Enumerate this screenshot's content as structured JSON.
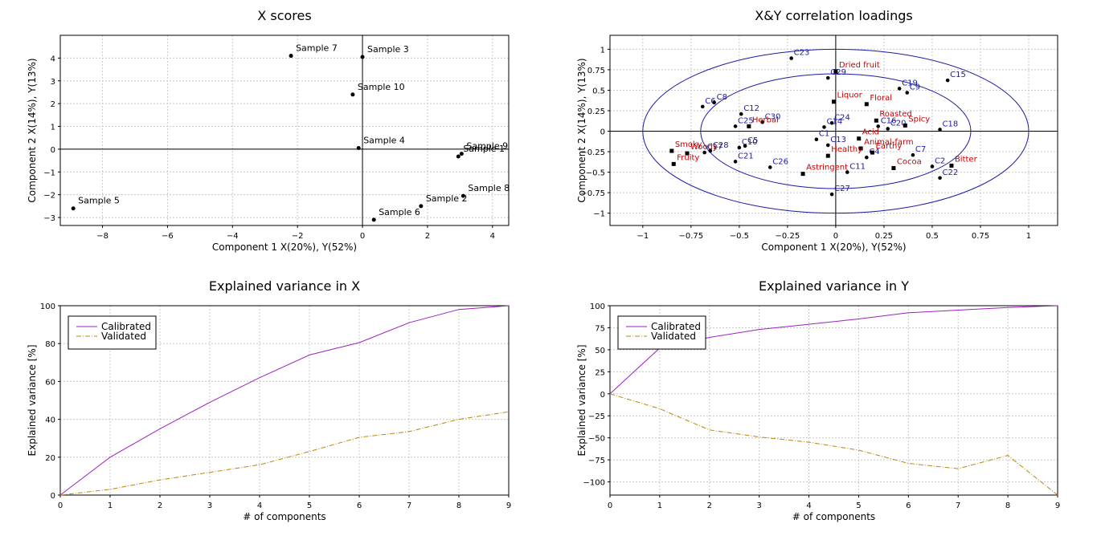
{
  "chart_data": [
    {
      "type": "scatter",
      "title": "X scores",
      "xlabel": "Component 1 X(20%), Y(52%)",
      "ylabel": "Component 2 X(14%), Y(13%)",
      "xlim": [
        -9.3,
        4.5
      ],
      "ylim": [
        -3.35,
        5.0
      ],
      "xticks": [
        -8,
        -6,
        -4,
        -2,
        0,
        2,
        4
      ],
      "yticks": [
        -3,
        -2,
        -1,
        0,
        1,
        2,
        3,
        4
      ],
      "grid": true,
      "points": [
        {
          "label": "Sample 7",
          "x": -2.2,
          "y": 4.1
        },
        {
          "label": "Sample 3",
          "x": 0.0,
          "y": 4.05
        },
        {
          "label": "Sample 10",
          "x": -0.3,
          "y": 2.4
        },
        {
          "label": "Sample 4",
          "x": -0.12,
          "y": 0.05
        },
        {
          "label": "Sample 9",
          "x": 3.05,
          "y": -0.2
        },
        {
          "label": "Sample 1",
          "x": 2.95,
          "y": -0.32
        },
        {
          "label": "Sample 8",
          "x": 3.1,
          "y": -2.05
        },
        {
          "label": "Sample 2",
          "x": 1.8,
          "y": -2.5
        },
        {
          "label": "Sample 6",
          "x": 0.35,
          "y": -3.1
        },
        {
          "label": "Sample 5",
          "x": -8.9,
          "y": -2.6
        }
      ]
    },
    {
      "type": "scatter",
      "title": "X&Y correlation loadings",
      "xlabel": "Component 1 X(20%), Y(52%)",
      "ylabel": "Component 2 X(14%), Y(13%)",
      "xlim": [
        -1.17,
        1.15
      ],
      "ylim": [
        -1.15,
        1.17
      ],
      "xticks": [
        -1,
        -0.75,
        -0.5,
        -0.25,
        0,
        0.25,
        0.5,
        0.75,
        1
      ],
      "yticks": [
        -1,
        -0.75,
        -0.5,
        -0.25,
        0,
        0.25,
        0.5,
        0.75,
        1
      ],
      "grid": true,
      "x_points": [
        {
          "label": "C23",
          "x": -0.23,
          "y": 0.89
        },
        {
          "label": "C29",
          "x": -0.04,
          "y": 0.65
        },
        {
          "label": "C15",
          "x": 0.58,
          "y": 0.62
        },
        {
          "label": "C19",
          "x": 0.33,
          "y": 0.52
        },
        {
          "label": "C9",
          "x": 0.37,
          "y": 0.47
        },
        {
          "label": "C6",
          "x": -0.69,
          "y": 0.3
        },
        {
          "label": "C8",
          "x": -0.63,
          "y": 0.35
        },
        {
          "label": "C12",
          "x": -0.49,
          "y": 0.21
        },
        {
          "label": "C25",
          "x": -0.52,
          "y": 0.06
        },
        {
          "label": "C30",
          "x": -0.38,
          "y": 0.11
        },
        {
          "label": "C24",
          "x": -0.02,
          "y": 0.1
        },
        {
          "label": "C14",
          "x": -0.06,
          "y": 0.05
        },
        {
          "label": "C1",
          "x": -0.1,
          "y": -0.1
        },
        {
          "label": "C16",
          "x": 0.22,
          "y": 0.06
        },
        {
          "label": "C20",
          "x": 0.27,
          "y": 0.03
        },
        {
          "label": "C18",
          "x": 0.54,
          "y": 0.02
        },
        {
          "label": "C5",
          "x": -0.47,
          "y": -0.18
        },
        {
          "label": "C10",
          "x": -0.5,
          "y": -0.2
        },
        {
          "label": "C13",
          "x": -0.04,
          "y": -0.17
        },
        {
          "label": "C4",
          "x": 0.16,
          "y": -0.32
        },
        {
          "label": "C7",
          "x": 0.4,
          "y": -0.29
        },
        {
          "label": "C17",
          "x": -0.68,
          "y": -0.26
        },
        {
          "label": "C28",
          "x": -0.65,
          "y": -0.24
        },
        {
          "label": "C21",
          "x": -0.52,
          "y": -0.37
        },
        {
          "label": "C26",
          "x": -0.34,
          "y": -0.44
        },
        {
          "label": "C11",
          "x": 0.06,
          "y": -0.5
        },
        {
          "label": "C2",
          "x": 0.5,
          "y": -0.43
        },
        {
          "label": "C22",
          "x": 0.54,
          "y": -0.57
        },
        {
          "label": "C27",
          "x": -0.02,
          "y": -0.77
        }
      ],
      "y_points": [
        {
          "label": "Dried fruit",
          "x": 0.0,
          "y": 0.73
        },
        {
          "label": "Liquor",
          "x": -0.01,
          "y": 0.36
        },
        {
          "label": "Floral",
          "x": 0.16,
          "y": 0.33
        },
        {
          "label": "Roasted",
          "x": 0.21,
          "y": 0.13
        },
        {
          "label": "Spicy",
          "x": 0.36,
          "y": 0.07
        },
        {
          "label": "Herbal",
          "x": -0.45,
          "y": 0.06
        },
        {
          "label": "Acid",
          "x": 0.12,
          "y": -0.09
        },
        {
          "label": "Animal-farm",
          "x": 0.13,
          "y": -0.21
        },
        {
          "label": "Healthy",
          "x": -0.04,
          "y": -0.3
        },
        {
          "label": "Earthy",
          "x": 0.19,
          "y": -0.26
        },
        {
          "label": "Astringent",
          "x": -0.17,
          "y": -0.52
        },
        {
          "label": "Cocoa",
          "x": 0.3,
          "y": -0.45
        },
        {
          "label": "Bitter",
          "x": 0.6,
          "y": -0.42
        },
        {
          "label": "Smoky",
          "x": -0.85,
          "y": -0.24
        },
        {
          "label": "Woody",
          "x": -0.77,
          "y": -0.27
        },
        {
          "label": "Fruity",
          "x": -0.84,
          "y": -0.4
        }
      ],
      "circles": [
        0.7,
        1.0
      ],
      "colors": {
        "x_points": "#1a1aa6",
        "y_points": "#cc0000",
        "circles": "#1a1aa6"
      }
    },
    {
      "type": "line",
      "title": "Explained variance in X",
      "xlabel": "# of components",
      "ylabel": "Explained variance [%]",
      "x": [
        0,
        1,
        2,
        3,
        4,
        5,
        6,
        7,
        8,
        9
      ],
      "xlim": [
        0,
        9
      ],
      "ylim": [
        0,
        100
      ],
      "xticks": [
        0,
        1,
        2,
        3,
        4,
        5,
        6,
        7,
        8,
        9
      ],
      "yticks": [
        0,
        20,
        40,
        60,
        80,
        100
      ],
      "grid": true,
      "legend": "top-left",
      "series": [
        {
          "name": "Calibrated",
          "color": "#a020c0",
          "values": [
            0,
            20,
            35,
            49,
            62,
            74,
            80.5,
            91,
            98,
            100
          ]
        },
        {
          "name": "Validated",
          "color": "#b8860b",
          "dash": true,
          "values": [
            0,
            3,
            8,
            12,
            16,
            23,
            30.5,
            33.5,
            40,
            44
          ]
        }
      ]
    },
    {
      "type": "line",
      "title": "Explained variance in Y",
      "xlabel": "# of components",
      "ylabel": "Explained variance [%]",
      "x": [
        0,
        1,
        2,
        3,
        4,
        5,
        6,
        7,
        8,
        9
      ],
      "xlim": [
        0,
        9
      ],
      "ylim": [
        -115,
        100
      ],
      "xticks": [
        0,
        1,
        2,
        3,
        4,
        5,
        6,
        7,
        8,
        9
      ],
      "yticks": [
        -100,
        -75,
        -50,
        -25,
        0,
        25,
        50,
        75,
        100
      ],
      "grid": true,
      "legend": "top-left",
      "series": [
        {
          "name": "Calibrated",
          "color": "#a020c0",
          "values": [
            0,
            52,
            64,
            73,
            79,
            85,
            92,
            95,
            98,
            100
          ]
        },
        {
          "name": "Validated",
          "color": "#b8860b",
          "dash": true,
          "values": [
            0,
            -17,
            -41,
            -49,
            -55,
            -64,
            -79,
            -85,
            -70,
            -115
          ]
        }
      ]
    }
  ]
}
